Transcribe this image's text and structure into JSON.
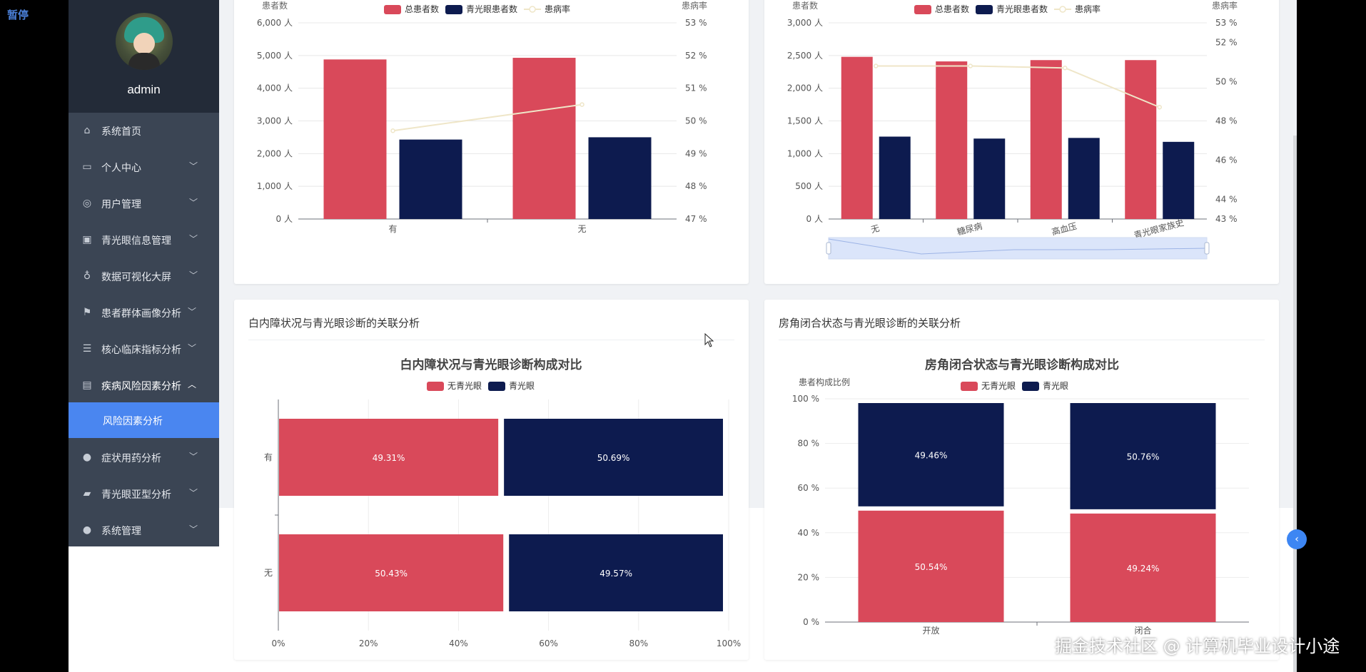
{
  "overlay": {
    "pause_label": "暂停",
    "watermark": "掘金技术社区 @ 计算机毕业设计小途"
  },
  "user": {
    "name": "admin"
  },
  "menu": {
    "items": [
      {
        "label": "系统首页",
        "icon": "home-icon",
        "has_children": false
      },
      {
        "label": "个人中心",
        "icon": "id-card-icon",
        "has_children": true
      },
      {
        "label": "用户管理",
        "icon": "compass-icon",
        "has_children": true
      },
      {
        "label": "青光眼信息管理",
        "icon": "clipboard-icon",
        "has_children": true
      },
      {
        "label": "数据可视化大屏",
        "icon": "microphone-icon",
        "has_children": true
      },
      {
        "label": "患者群体画像分析",
        "icon": "flag-icon",
        "has_children": true
      },
      {
        "label": "核心临床指标分析",
        "icon": "list-icon",
        "has_children": true
      },
      {
        "label": "疾病风险因素分析",
        "icon": "monitor-icon",
        "has_children": true,
        "expanded": true
      }
    ],
    "active_sub": {
      "label": "风险因素分析"
    },
    "items_after": [
      {
        "label": "症状用药分析",
        "icon": "user-icon",
        "has_children": true
      },
      {
        "label": "青光眼亚型分析",
        "icon": "suitcase-icon",
        "has_children": true
      },
      {
        "label": "系统管理",
        "icon": "user-icon",
        "has_children": true
      }
    ]
  },
  "cards": {
    "top_left": {
      "title": ""
    },
    "top_right": {
      "title": ""
    },
    "bottom_left": {
      "title": "白内障状况与青光眼诊断的关联分析"
    },
    "bottom_right": {
      "title": "房角闭合状态与青光眼诊断的关联分析"
    }
  },
  "colors": {
    "red": "#d9495a",
    "navy": "#0d1b4f",
    "line": "#efe6c8",
    "active_menu": "#4a86f0",
    "menu_bg": "#3b4554"
  },
  "chart_data": [
    {
      "type": "bar",
      "title": "",
      "categories": [
        "有",
        "无"
      ],
      "series": [
        {
          "name": "总患者数",
          "values": [
            4880,
            4930
          ]
        },
        {
          "name": "青光眼患者数",
          "values": [
            2430,
            2500
          ]
        },
        {
          "name": "患病率",
          "type": "line",
          "axis": "right",
          "values": [
            49.7,
            50.5
          ]
        }
      ],
      "ylabel": "患者数",
      "ylabel_right": "患病率",
      "ylim": [
        0,
        6000
      ],
      "yticks": [
        "0 人",
        "1,000 人",
        "2,000 人",
        "3,000 人",
        "4,000 人",
        "5,000 人",
        "6,000 人"
      ],
      "ylim_right": [
        47,
        53
      ],
      "yticks_right": [
        "47 %",
        "48 %",
        "49 %",
        "50 %",
        "51 %",
        "52 %",
        "53 %"
      ],
      "legend": "top-center"
    },
    {
      "type": "bar",
      "title": "",
      "categories": [
        "无",
        "糖尿病",
        "高血压",
        "青光眼家族史"
      ],
      "series": [
        {
          "name": "总患者数",
          "values": [
            2480,
            2410,
            2430,
            2430
          ]
        },
        {
          "name": "青光眼患者数",
          "values": [
            1260,
            1230,
            1240,
            1180
          ]
        },
        {
          "name": "患病率",
          "type": "line",
          "axis": "right",
          "values": [
            50.8,
            50.8,
            50.7,
            48.7
          ]
        }
      ],
      "ylabel": "患者数",
      "ylabel_right": "患病率",
      "ylim": [
        0,
        3000
      ],
      "yticks": [
        "0 人",
        "500 人",
        "1,000 人",
        "1,500 人",
        "2,000 人",
        "2,500 人",
        "3,000 人"
      ],
      "yticks_right": [
        "43 %",
        "44 %",
        "46 %",
        "48 %",
        "50 %",
        "52 %",
        "53 %"
      ],
      "legend": "top-center",
      "datazoom": true
    },
    {
      "type": "bar",
      "orientation": "horizontal",
      "stacked": "percent",
      "title": "白内障状况与青光眼诊断构成对比",
      "categories": [
        "有",
        "无"
      ],
      "series": [
        {
          "name": "无青光眼",
          "values": [
            49.31,
            50.43
          ],
          "labels": [
            "49.31%",
            "50.43%"
          ]
        },
        {
          "name": "青光眼",
          "values": [
            50.69,
            49.57
          ],
          "labels": [
            "50.69%",
            "49.57%"
          ]
        }
      ],
      "xlim": [
        0,
        100
      ],
      "xticks": [
        "0%",
        "20%",
        "40%",
        "60%",
        "80%",
        "100%"
      ],
      "legend": "top-center"
    },
    {
      "type": "bar",
      "stacked": "percent",
      "title": "房角闭合状态与青光眼诊断构成对比",
      "categories": [
        "开放",
        "闭合"
      ],
      "series": [
        {
          "name": "无青光眼",
          "values": [
            50.54,
            49.24
          ],
          "labels": [
            "50.54%",
            "49.24%"
          ]
        },
        {
          "name": "青光眼",
          "values": [
            49.46,
            50.76
          ],
          "labels": [
            "49.46%",
            "50.76%"
          ]
        }
      ],
      "ylabel": "患者构成比例",
      "ylim": [
        0,
        100
      ],
      "yticks": [
        "0 %",
        "20 %",
        "40 %",
        "60 %",
        "80 %",
        "100 %"
      ],
      "legend": "top-center"
    }
  ]
}
